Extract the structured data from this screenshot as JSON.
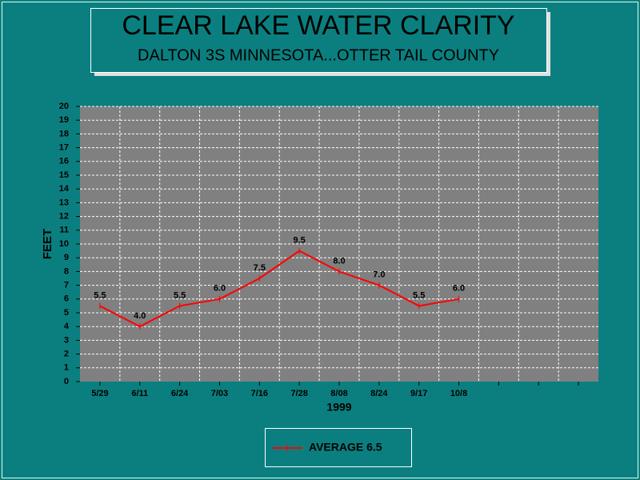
{
  "chart_data": {
    "type": "line",
    "title": "CLEAR LAKE WATER CLARITY",
    "subtitle": "DALTON 3S MINNESOTA...OTTER TAIL COUNTY",
    "x_label": "1999",
    "y_label": "FEET",
    "categories": [
      "5/29",
      "6/11",
      "6/24",
      "7/03",
      "7/16",
      "7/28",
      "8/08",
      "8/24",
      "9/17",
      "10/8",
      null,
      null,
      null
    ],
    "series": [
      {
        "name": "AVERAGE 6.5",
        "color": "#ff0000",
        "values": [
          5.5,
          4,
          5.5,
          6,
          7.5,
          9.5,
          8,
          7,
          5.5,
          6,
          null,
          null,
          null
        ],
        "value_labels": [
          "5.5",
          "4.0",
          "5.5",
          "6.0",
          "7.5",
          "9.5",
          "8.0",
          "7.0",
          "5.5",
          "6.0",
          null,
          null,
          null
        ]
      }
    ],
    "ylim": [
      0,
      20
    ],
    "yticks": [
      0,
      1,
      2,
      3,
      4,
      5,
      6,
      7,
      8,
      9,
      10,
      11,
      12,
      13,
      14,
      15,
      16,
      17,
      18,
      19,
      20
    ],
    "grid": true
  }
}
